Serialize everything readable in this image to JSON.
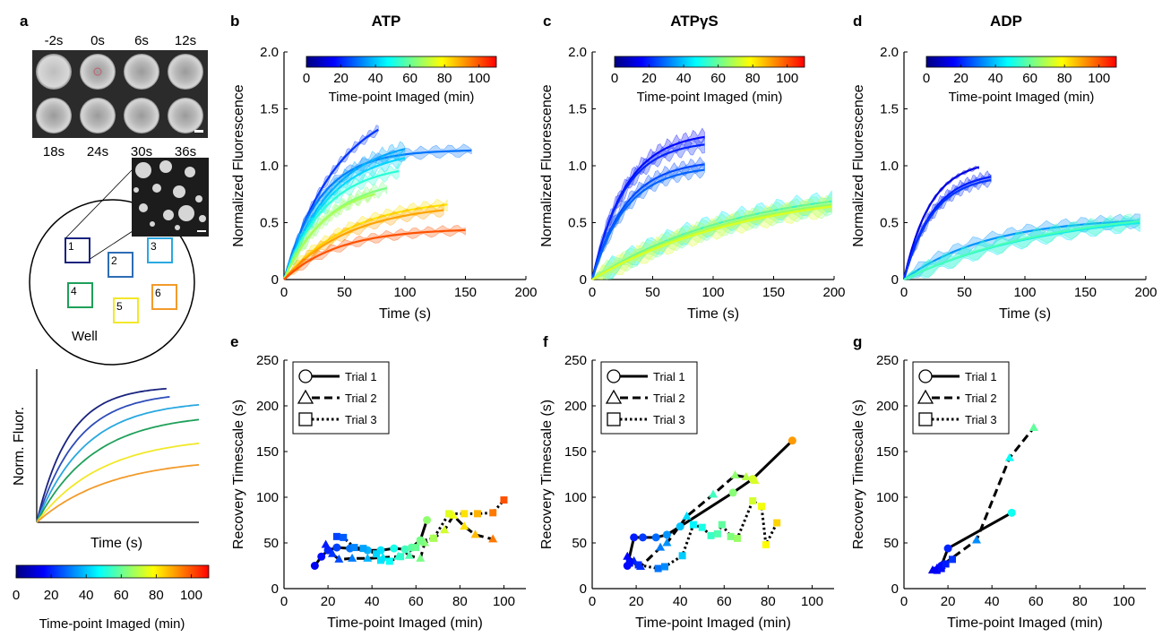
{
  "colors": {
    "colormap": [
      "#00007f",
      "#0000ff",
      "#007fff",
      "#00ffff",
      "#7fff7f",
      "#ffff00",
      "#ff7f00",
      "#ff0000"
    ],
    "axis": "#000000",
    "frame_bg": "#2a2a2a"
  },
  "panel_a": {
    "letter": "a",
    "frames_top": [
      "-2s",
      "0s",
      "6s",
      "12s"
    ],
    "frames_bottom": [
      "18s",
      "24s",
      "30s",
      "36s"
    ],
    "well_label": "Well",
    "region_numbers": [
      "1",
      "2",
      "3",
      "4",
      "5",
      "6"
    ],
    "region_colors": [
      "#1a237e",
      "#2f6db5",
      "#29a8e0",
      "#1fa05a",
      "#f2e829",
      "#f29b2b"
    ],
    "schematic": {
      "xlabel": "Time (s)",
      "ylabel": "Norm. Fluor.",
      "curve_colors": [
        "#1a237e",
        "#2e4db8",
        "#29a8e0",
        "#1fa05a",
        "#f2e829",
        "#f29b2b"
      ],
      "curve_plateaus": [
        0.95,
        0.91,
        0.85,
        0.76,
        0.6,
        0.45
      ]
    },
    "colorbar": {
      "ticks": [
        "0",
        "20",
        "40",
        "60",
        "80",
        "100"
      ],
      "label": "Time-point Imaged (min)",
      "range": [
        0,
        110
      ]
    }
  },
  "chart_data": [
    {
      "type": "line",
      "panel": "b",
      "title": "ATP",
      "xlabel": "Time (s)",
      "ylabel": "Normalized Fluorescence",
      "xlim": [
        0,
        200
      ],
      "ylim": [
        0,
        2.0
      ],
      "xticks": [
        "0",
        "50",
        "100",
        "150",
        "200"
      ],
      "yticks": [
        "0",
        "0.5",
        "1.0",
        "1.5",
        "2.0"
      ],
      "colorbar": {
        "label": "Time-point Imaged (min)",
        "ticks": [
          "0",
          "20",
          "40",
          "60",
          "80",
          "100"
        ],
        "range": [
          0,
          110
        ]
      },
      "series": [
        {
          "t": 22,
          "plateau": 1.6,
          "tau": 45,
          "tmax": 78,
          "band": 0.05
        },
        {
          "t": 30,
          "plateau": 1.14,
          "tau": 30,
          "tmax": 155,
          "band": 0.06
        },
        {
          "t": 36,
          "plateau": 1.25,
          "tau": 40,
          "tmax": 100,
          "band": 0.08
        },
        {
          "t": 42,
          "plateau": 1.15,
          "tau": 38,
          "tmax": 100,
          "band": 0.08
        },
        {
          "t": 52,
          "plateau": 1.02,
          "tau": 35,
          "tmax": 95,
          "band": 0.07
        },
        {
          "t": 62,
          "plateau": 0.9,
          "tau": 38,
          "tmax": 85,
          "band": 0.07
        },
        {
          "t": 68,
          "plateau": 0.85,
          "tau": 35,
          "tmax": 75,
          "band": 0.06
        },
        {
          "t": 82,
          "plateau": 0.72,
          "tau": 55,
          "tmax": 135,
          "band": 0.06
        },
        {
          "t": 90,
          "plateau": 0.67,
          "tau": 55,
          "tmax": 132,
          "band": 0.06
        },
        {
          "t": 100,
          "plateau": 0.45,
          "tau": 45,
          "tmax": 150,
          "band": 0.05
        }
      ]
    },
    {
      "type": "line",
      "panel": "c",
      "title": "ATPγS",
      "xlabel": "Time (s)",
      "ylabel": "Normalized Fluorescence",
      "xlim": [
        0,
        200
      ],
      "ylim": [
        0,
        2.0
      ],
      "xticks": [
        "0",
        "50",
        "100",
        "150",
        "200"
      ],
      "yticks": [
        "0",
        "0.5",
        "1.0",
        "1.5",
        "2.0"
      ],
      "colorbar": {
        "label": "Time-point Imaged (min)",
        "ticks": [
          "0",
          "20",
          "40",
          "60",
          "80",
          "100"
        ],
        "range": [
          0,
          110
        ]
      },
      "series": [
        {
          "t": 16,
          "plateau": 1.3,
          "tau": 28,
          "tmax": 93,
          "band": 0.08
        },
        {
          "t": 20,
          "plateau": 1.22,
          "tau": 26,
          "tmax": 93,
          "band": 0.08
        },
        {
          "t": 24,
          "plateau": 1.05,
          "tau": 28,
          "tmax": 93,
          "band": 0.07
        },
        {
          "t": 28,
          "plateau": 1.0,
          "tau": 28,
          "tmax": 93,
          "band": 0.07
        },
        {
          "t": 45,
          "plateau": 0.85,
          "tau": 120,
          "tmax": 198,
          "band": 0.1
        },
        {
          "t": 58,
          "plateau": 0.83,
          "tau": 125,
          "tmax": 198,
          "band": 0.1
        },
        {
          "t": 66,
          "plateau": 0.8,
          "tau": 120,
          "tmax": 198,
          "band": 0.1
        },
        {
          "t": 74,
          "plateau": 0.82,
          "tau": 130,
          "tmax": 198,
          "band": 0.1
        }
      ]
    },
    {
      "type": "line",
      "panel": "d",
      "title": "ADP",
      "xlabel": "Time (s)",
      "ylabel": "Normalized Fluorescence",
      "xlim": [
        0,
        200
      ],
      "ylim": [
        0,
        2.0
      ],
      "xticks": [
        "0",
        "50",
        "100",
        "150",
        "200"
      ],
      "yticks": [
        "0",
        "0.5",
        "1.0",
        "1.5",
        "2.0"
      ],
      "colorbar": {
        "label": "Time-point Imaged (min)",
        "ticks": [
          "0",
          "20",
          "40",
          "60",
          "80",
          "100"
        ],
        "range": [
          0,
          110
        ]
      },
      "series": [
        {
          "t": 12,
          "plateau": 1.05,
          "tau": 22,
          "tmax": 62,
          "band": 0.02
        },
        {
          "t": 18,
          "plateau": 0.95,
          "tau": 24,
          "tmax": 72,
          "band": 0.06
        },
        {
          "t": 22,
          "plateau": 0.92,
          "tau": 24,
          "tmax": 72,
          "band": 0.06
        },
        {
          "t": 34,
          "plateau": 0.55,
          "tau": 70,
          "tmax": 195,
          "band": 0.07
        },
        {
          "t": 44,
          "plateau": 0.62,
          "tau": 120,
          "tmax": 195,
          "band": 0.08
        },
        {
          "t": 56,
          "plateau": 0.65,
          "tau": 125,
          "tmax": 195,
          "band": 0.08
        }
      ]
    },
    {
      "type": "scatter",
      "panel": "e",
      "xlabel": "Time-point Imaged (min)",
      "ylabel": "Recovery Timescale (s)",
      "xlim": [
        0,
        110
      ],
      "ylim": [
        0,
        250
      ],
      "xticks": [
        "0",
        "20",
        "40",
        "60",
        "80",
        "100"
      ],
      "yticks": [
        "0",
        "50",
        "100",
        "150",
        "200",
        "250"
      ],
      "legend": {
        "position": "top-left",
        "entries": [
          "Trial 1",
          "Trial 2",
          "Trial 3"
        ]
      },
      "series": [
        {
          "name": "Trial 1",
          "marker": "circle",
          "dash": "solid",
          "points": [
            [
              14,
              25
            ],
            [
              17,
              35
            ],
            [
              20,
              42
            ],
            [
              24,
              45
            ],
            [
              30,
              44
            ],
            [
              38,
              42
            ],
            [
              44,
              42
            ],
            [
              50,
              44
            ],
            [
              55,
              43
            ],
            [
              58,
              45
            ],
            [
              62,
              53
            ],
            [
              65,
              75
            ]
          ]
        },
        {
          "name": "Trial 2",
          "marker": "triangle",
          "dash": "dashed",
          "points": [
            [
              19,
              48
            ],
            [
              22,
              38
            ],
            [
              25,
              32
            ],
            [
              31,
              33
            ],
            [
              38,
              33
            ],
            [
              45,
              34
            ],
            [
              52,
              35
            ],
            [
              57,
              36
            ],
            [
              62,
              33
            ],
            [
              64,
              50
            ],
            [
              68,
              55
            ],
            [
              73,
              64
            ],
            [
              77,
              80
            ],
            [
              82,
              68
            ],
            [
              87,
              59
            ],
            [
              95,
              54
            ]
          ]
        },
        {
          "name": "Trial 3",
          "marker": "square",
          "dash": "dotted",
          "points": [
            [
              24,
              57
            ],
            [
              27,
              56
            ],
            [
              32,
              45
            ],
            [
              36,
              44
            ],
            [
              42,
              38
            ],
            [
              44,
              31
            ],
            [
              48,
              30
            ],
            [
              53,
              35
            ],
            [
              60,
              45
            ],
            [
              62,
              52
            ],
            [
              68,
              55
            ],
            [
              75,
              82
            ],
            [
              82,
              82
            ],
            [
              88,
              82
            ],
            [
              95,
              83
            ],
            [
              100,
              97
            ]
          ]
        }
      ]
    },
    {
      "type": "scatter",
      "panel": "f",
      "xlabel": "Time-point Imaged (min)",
      "ylabel": "Recovery Timescale (s)",
      "xlim": [
        0,
        110
      ],
      "ylim": [
        0,
        250
      ],
      "xticks": [
        "0",
        "20",
        "40",
        "60",
        "80",
        "100"
      ],
      "yticks": [
        "0",
        "50",
        "100",
        "150",
        "200",
        "250"
      ],
      "legend": {
        "position": "top-left",
        "entries": [
          "Trial 1",
          "Trial 2",
          "Trial 3"
        ]
      },
      "series": [
        {
          "name": "Trial 1",
          "marker": "circle",
          "dash": "solid",
          "points": [
            [
              16,
              25
            ],
            [
              19,
              56
            ],
            [
              23,
              56
            ],
            [
              29,
              56
            ],
            [
              34,
              59
            ],
            [
              40,
              68
            ],
            [
              64,
              105
            ],
            [
              73,
              120
            ],
            [
              91,
              162
            ]
          ]
        },
        {
          "name": "Trial 2",
          "marker": "triangle",
          "dash": "dashed",
          "points": [
            [
              16,
              35
            ],
            [
              19,
              30
            ],
            [
              22,
              24
            ],
            [
              31,
              45
            ],
            [
              34,
              50
            ],
            [
              43,
              79
            ],
            [
              55,
              103
            ],
            [
              65,
              124
            ],
            [
              70,
              122
            ],
            [
              74,
              118
            ]
          ]
        },
        {
          "name": "Trial 3",
          "marker": "square",
          "dash": "dotted",
          "points": [
            [
              17,
              28
            ],
            [
              21,
              26
            ],
            [
              30,
              22
            ],
            [
              33,
              24
            ],
            [
              41,
              36
            ],
            [
              46,
              70
            ],
            [
              50,
              67
            ],
            [
              54,
              58
            ],
            [
              57,
              60
            ],
            [
              59,
              70
            ],
            [
              63,
              57
            ],
            [
              66,
              55
            ],
            [
              73,
              96
            ],
            [
              77,
              90
            ],
            [
              79,
              48
            ],
            [
              84,
              72
            ]
          ]
        }
      ]
    },
    {
      "type": "scatter",
      "panel": "g",
      "xlabel": "Time-point Imaged (min)",
      "ylabel": "Recovery Timescale (s)",
      "xlim": [
        0,
        110
      ],
      "ylim": [
        0,
        250
      ],
      "xticks": [
        "0",
        "20",
        "40",
        "60",
        "80",
        "100"
      ],
      "yticks": [
        "0",
        "50",
        "100",
        "150",
        "200",
        "250"
      ],
      "legend": {
        "position": "top-left",
        "entries": [
          "Trial 1",
          "Trial 2",
          "Trial 3"
        ]
      },
      "series": [
        {
          "name": "Trial 1",
          "marker": "circle",
          "dash": "solid",
          "points": [
            [
              17,
              25
            ],
            [
              20,
              44
            ],
            [
              49,
              83
            ]
          ]
        },
        {
          "name": "Trial 2",
          "marker": "triangle",
          "dash": "dashed",
          "points": [
            [
              13,
              20
            ],
            [
              15,
              22
            ],
            [
              17,
              25
            ],
            [
              33,
              53
            ],
            [
              48,
              143
            ],
            [
              59,
              176
            ]
          ]
        },
        {
          "name": "Trial 3",
          "marker": "square",
          "dash": "dotted",
          "points": [
            [
              15,
              20
            ],
            [
              17,
              22
            ],
            [
              19,
              27
            ],
            [
              22,
              32
            ]
          ]
        }
      ]
    }
  ]
}
